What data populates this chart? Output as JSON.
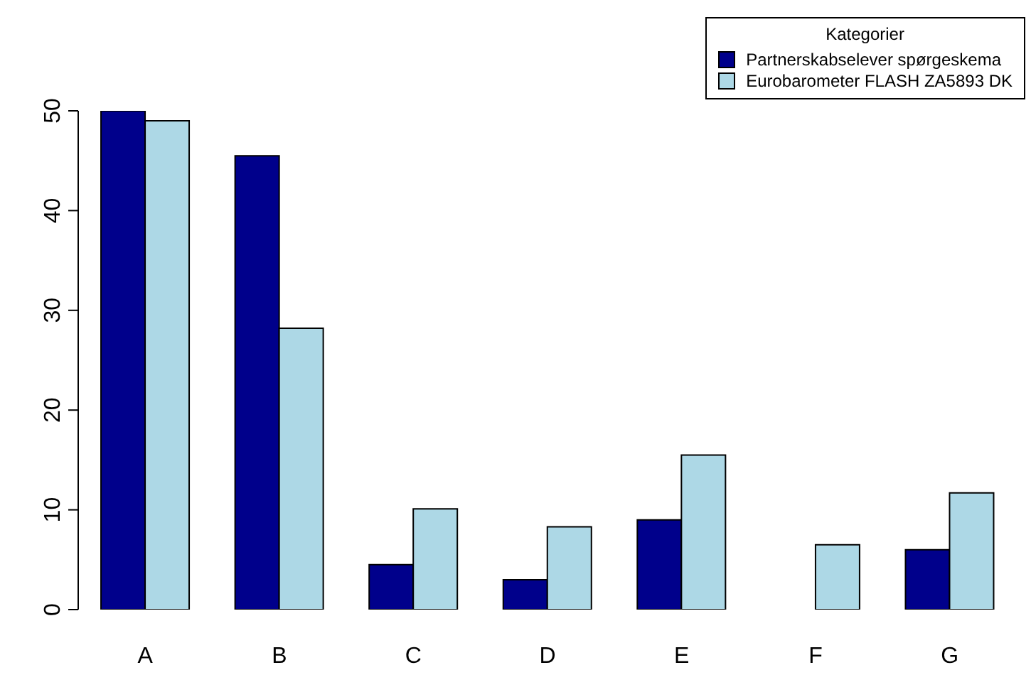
{
  "chart_data": {
    "type": "bar",
    "categories": [
      "A",
      "B",
      "C",
      "D",
      "E",
      "F",
      "G"
    ],
    "series": [
      {
        "name": "Partnerskabselever spørgeskema",
        "color": "#00008b",
        "values": [
          50,
          45.5,
          4.5,
          3,
          9,
          0,
          6
        ]
      },
      {
        "name": "Eurobarometer FLASH ZA5893 DK",
        "color": "#add8e6",
        "values": [
          49,
          28.2,
          10.1,
          8.3,
          15.5,
          6.5,
          11.7
        ]
      }
    ],
    "ylim": [
      0,
      50
    ],
    "yticks": [
      0,
      10,
      20,
      30,
      40,
      50
    ],
    "grid": false,
    "legend": "top right",
    "legend_title": "Kategorier"
  }
}
